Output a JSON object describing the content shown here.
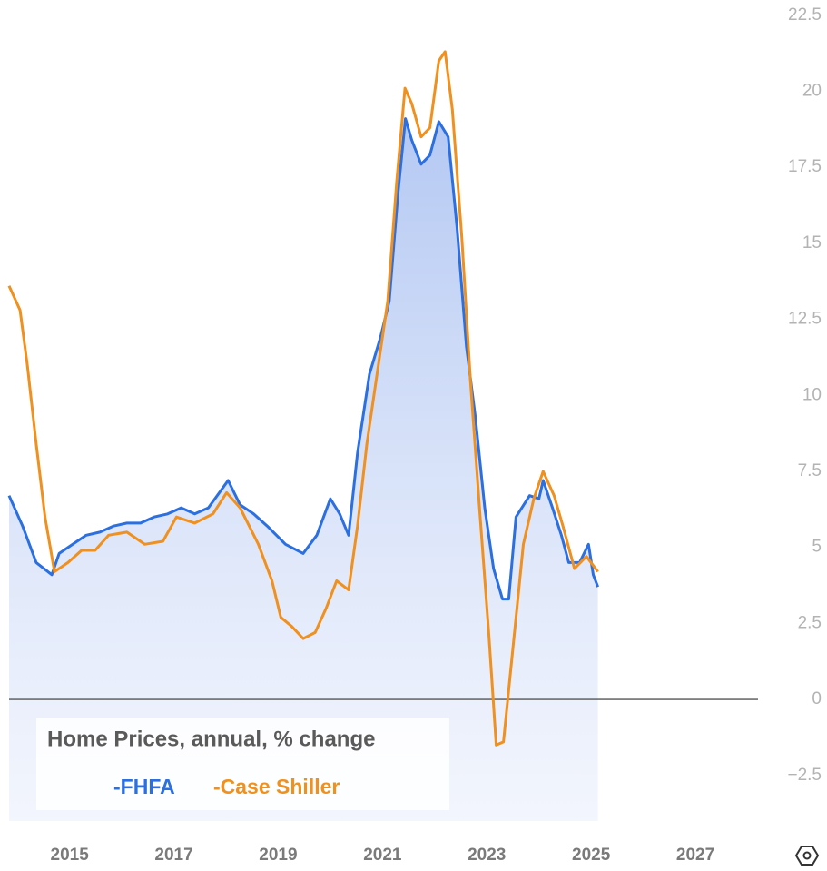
{
  "chart_data": {
    "type": "line",
    "title": "Home Prices, annual, % change",
    "xlim": [
      2013.84,
      2028.2
    ],
    "xticks": [
      2015,
      2017,
      2019,
      2021,
      2023,
      2025,
      2027
    ],
    "ylim": [
      -4,
      23
    ],
    "yticks": [
      {
        "value": -2.5,
        "label": "−2.5"
      },
      0,
      2.5,
      5,
      7.5,
      10,
      12.5,
      15,
      17.5,
      20,
      22.5
    ],
    "grid": false,
    "series": [
      {
        "name": "-FHFA",
        "color": "#2b6fe0",
        "area": true,
        "x": [
          2013.84,
          2014.1,
          2014.36,
          2014.66,
          2014.8,
          2015.06,
          2015.32,
          2015.58,
          2015.84,
          2016.1,
          2016.36,
          2016.62,
          2016.88,
          2017.14,
          2017.4,
          2017.66,
          2017.83,
          2018.04,
          2018.27,
          2018.53,
          2018.79,
          2019.14,
          2019.48,
          2019.74,
          2020.0,
          2020.18,
          2020.35,
          2020.52,
          2020.75,
          2020.96,
          2021.13,
          2021.3,
          2021.44,
          2021.56,
          2021.74,
          2021.91,
          2022.08,
          2022.26,
          2022.43,
          2022.61,
          2022.78,
          2022.96,
          2023.13,
          2023.3,
          2023.42,
          2023.56,
          2023.82,
          2024.0,
          2024.08,
          2024.26,
          2024.43,
          2024.57,
          2024.78,
          2024.95,
          2025.04,
          2025.13
        ],
        "values": [
          6.7,
          5.7,
          4.5,
          4.1,
          4.8,
          5.1,
          5.4,
          5.5,
          5.7,
          5.8,
          5.8,
          6.0,
          6.1,
          6.3,
          6.1,
          6.3,
          6.7,
          7.2,
          6.4,
          6.1,
          5.7,
          5.1,
          4.8,
          5.4,
          6.6,
          6.1,
          5.4,
          8.1,
          10.7,
          11.9,
          13.1,
          16.7,
          19.1,
          18.4,
          17.6,
          17.9,
          19.0,
          18.5,
          15.5,
          11.6,
          9.3,
          6.3,
          4.3,
          3.3,
          3.3,
          6.0,
          6.7,
          6.6,
          7.2,
          6.3,
          5.4,
          4.5,
          4.5,
          5.1,
          4.1,
          3.7
        ]
      },
      {
        "name": "-Case Shiller",
        "color": "#f0901e",
        "area": false,
        "x": [
          2013.84,
          2014.05,
          2014.19,
          2014.36,
          2014.53,
          2014.71,
          2014.97,
          2015.23,
          2015.49,
          2015.75,
          2016.1,
          2016.44,
          2016.79,
          2017.05,
          2017.4,
          2017.75,
          2018.01,
          2018.27,
          2018.62,
          2018.88,
          2019.05,
          2019.26,
          2019.48,
          2019.71,
          2019.92,
          2020.12,
          2020.35,
          2020.52,
          2020.7,
          2020.92,
          2021.1,
          2021.27,
          2021.43,
          2021.56,
          2021.74,
          2021.91,
          2022.08,
          2022.2,
          2022.34,
          2022.52,
          2022.69,
          2022.86,
          2023.04,
          2023.18,
          2023.32,
          2023.49,
          2023.7,
          2023.9,
          2024.08,
          2024.29,
          2024.46,
          2024.68,
          2024.91,
          2025.13
        ],
        "values": [
          13.6,
          12.8,
          11.0,
          8.4,
          6.0,
          4.2,
          4.5,
          4.9,
          4.9,
          5.4,
          5.5,
          5.1,
          5.2,
          6.0,
          5.8,
          6.1,
          6.8,
          6.3,
          5.1,
          3.9,
          2.7,
          2.4,
          2.0,
          2.2,
          3.0,
          3.9,
          3.6,
          5.7,
          8.4,
          11.0,
          13.1,
          17.0,
          20.1,
          19.6,
          18.5,
          18.8,
          21.0,
          21.3,
          19.4,
          15.2,
          10.4,
          6.3,
          2.1,
          -1.5,
          -1.4,
          1.5,
          5.1,
          6.6,
          7.5,
          6.7,
          5.7,
          4.3,
          4.7,
          4.2
        ]
      }
    ]
  }
}
